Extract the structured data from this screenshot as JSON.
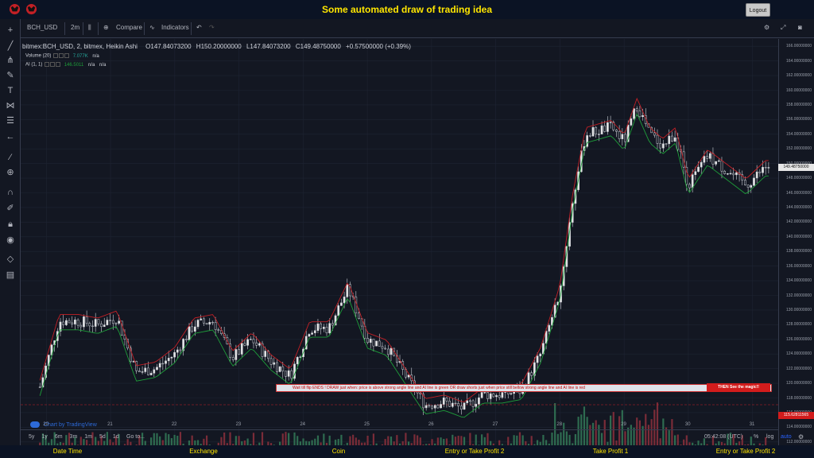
{
  "header": {
    "title": "Some automated draw of trading idea",
    "logout_label": "Logout"
  },
  "toolbar": {
    "symbol": "BCH_USD",
    "interval": "2m",
    "compare_label": "Compare",
    "indicators_label": "Indicators"
  },
  "legend": {
    "main": "bitmex:BCH_USD, 2, bitmex, Heikin Ashi",
    "open": "O147.84073200",
    "high": "H150.20000000",
    "low": "L147.84073200",
    "close": "C149.48750000",
    "change": "+0.57500000 (+0.39%)",
    "volume_label": "Volume (20)",
    "volume_value": "7.077K",
    "volume_na": "n/a",
    "ai_label": "AI (1, 1)",
    "ai_value": "146.5011",
    "ai_na1": "n/a",
    "ai_na2": "n/a"
  },
  "price_axis": {
    "labels": [
      "166.00000000",
      "164.00000000",
      "162.00000000",
      "160.00000000",
      "158.00000000",
      "156.00000000",
      "154.00000000",
      "152.00000000",
      "150.00000000",
      "148.00000000",
      "146.00000000",
      "144.00000000",
      "142.00000000",
      "140.00000000",
      "138.00000000",
      "136.00000000",
      "134.00000000",
      "132.00000000",
      "130.00000000",
      "128.00000000",
      "126.00000000",
      "124.00000000",
      "122.00000000",
      "120.00000000",
      "118.00000000",
      "116.00000000",
      "114.00000000",
      "112.00000000"
    ],
    "last_price": "149.48750000",
    "alert_price": "115.62811565"
  },
  "time_axis": {
    "labels": [
      "20",
      "21",
      "22",
      "23",
      "24",
      "25",
      "26",
      "27",
      "28",
      "29",
      "30",
      "31"
    ],
    "ranges": [
      "5y",
      "1y",
      "6m",
      "3m",
      "1m",
      "5d",
      "1d"
    ],
    "goto_label": "Go to...",
    "clock": "05:42:08 (UTC)",
    "percent_label": "%",
    "log_label": "log",
    "auto_label": "auto"
  },
  "banner": {
    "text": "Wait till flip ENDS !   DRAW just when:  price is above strong angle line and AI line is green         OR       draw shorts just when price still bellow strong angle line and AI line is red",
    "cta": "THEN See the magic!!"
  },
  "watermark": "Chart by TradingView",
  "bottom": {
    "labels": [
      "Date Time",
      "Exchange",
      "Coin",
      "Entry or Take Profit 2",
      "Take Profit 1",
      "Entry or Take Profit 2"
    ]
  },
  "colors": {
    "up": "#e6e6e6",
    "down": "#131722",
    "ma_green": "#1e9e3a",
    "ma_red": "#c32026",
    "vol_up": "#2e6b50",
    "vol_down": "#7a2c38",
    "accent": "#ffe600"
  },
  "chart_data": {
    "type": "line",
    "title": "",
    "xlabel": "",
    "ylabel": "",
    "ylim": [
      111,
      167
    ],
    "x_days": [
      19.9,
      20.2,
      20.5,
      20.8,
      21.1,
      21.4,
      21.7,
      22.0,
      22.3,
      22.6,
      22.9,
      23.2,
      23.5,
      23.8,
      24.1,
      24.4,
      24.7,
      25.0,
      25.3,
      25.6,
      25.9,
      26.2,
      26.5,
      26.8,
      27.1,
      27.4,
      27.7,
      28.0,
      28.2,
      28.4,
      28.6,
      28.8,
      29.0,
      29.2,
      29.4,
      29.6,
      29.8,
      30.0,
      30.3,
      30.6,
      30.9,
      31.2
    ],
    "series": [
      {
        "name": "",
        "values": [
          119.5,
          128.5,
          128.5,
          128.0,
          129.0,
          121.5,
          122.0,
          124.0,
          128.0,
          128.5,
          123.5,
          126.0,
          123.0,
          121.0,
          127.5,
          127.5,
          133.0,
          126.0,
          125.0,
          121.0,
          117.0,
          117.5,
          116.5,
          118.5,
          118.5,
          119.0,
          124.0,
          132.5,
          145.0,
          154.0,
          154.5,
          155.0,
          153.0,
          158.0,
          154.0,
          152.5,
          154.0,
          147.0,
          151.0,
          149.0,
          147.0,
          149.5
        ]
      }
    ]
  }
}
